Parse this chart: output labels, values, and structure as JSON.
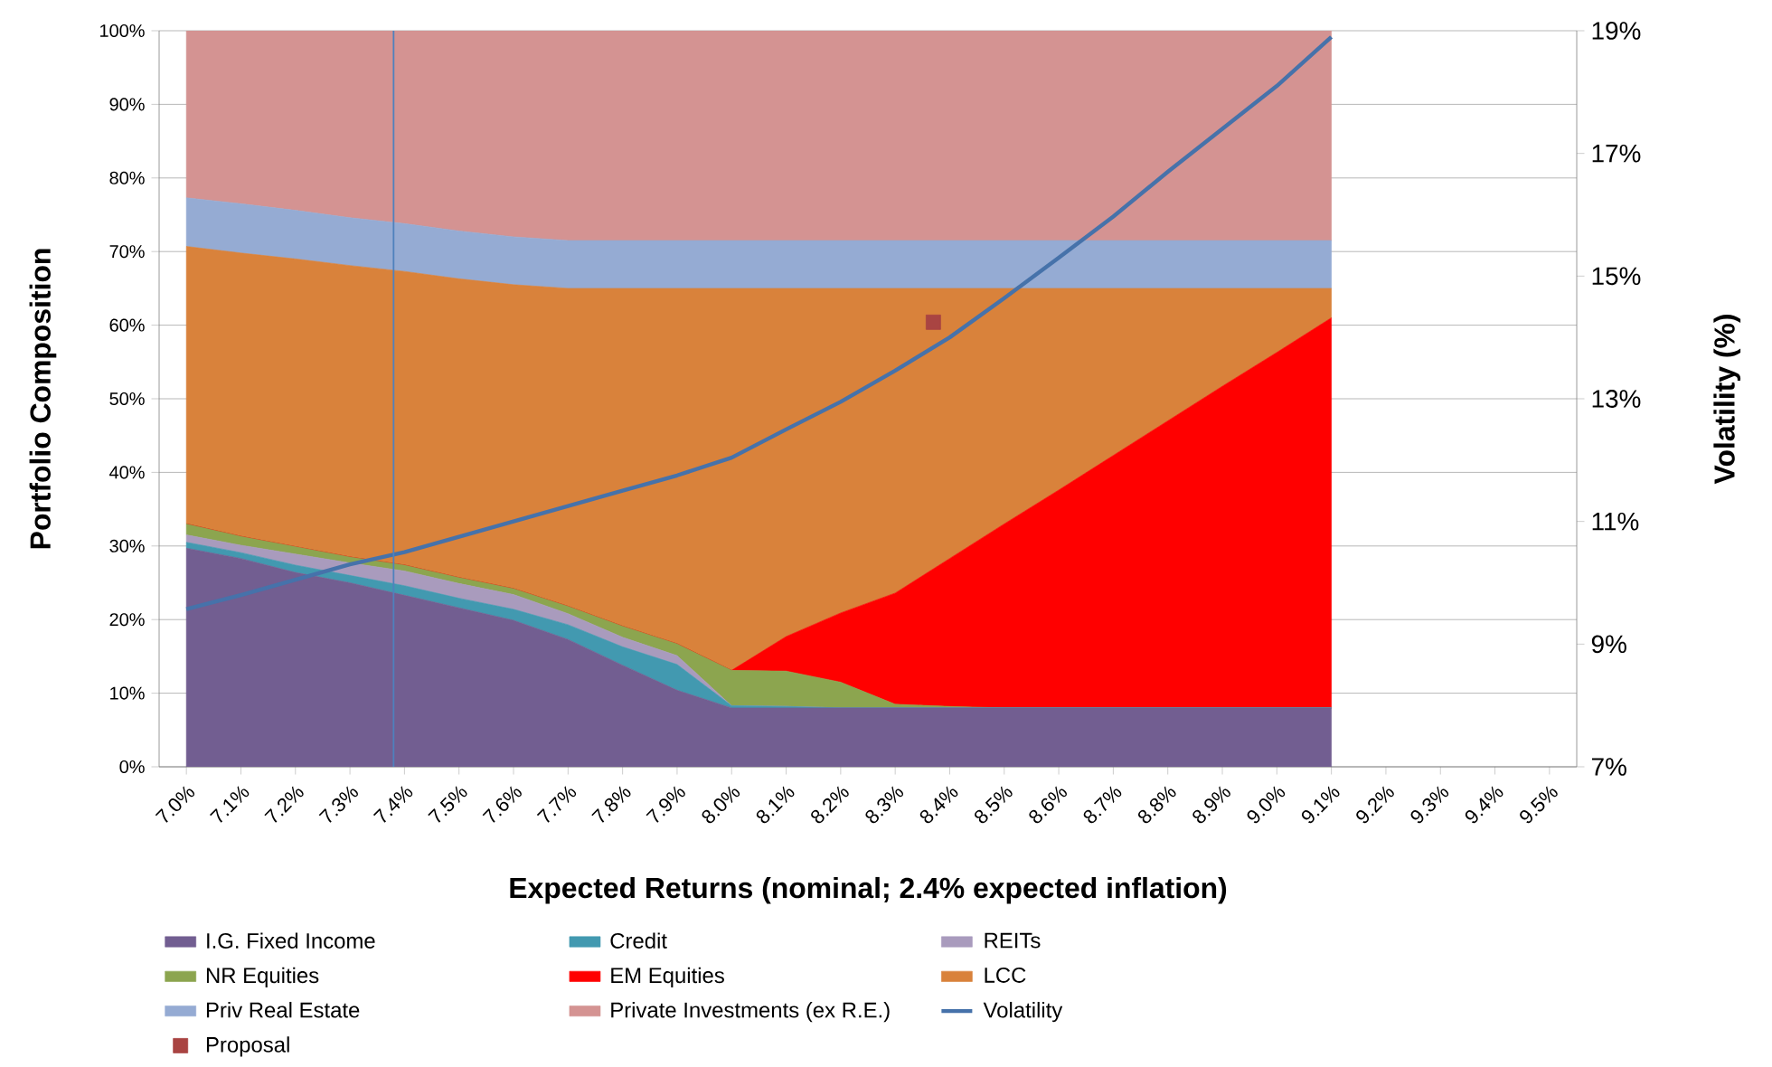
{
  "chart_data": {
    "type": "area",
    "stacked": true,
    "xlabel": "Expected Returns (nominal; 2.4% expected inflation)",
    "ylabel": "Portfolio Composition",
    "y2label": "Volatility (%)",
    "x": [
      7.0,
      7.1,
      7.2,
      7.3,
      7.4,
      7.5,
      7.6,
      7.7,
      7.8,
      7.9,
      8.0,
      8.1,
      8.2,
      8.3,
      8.4,
      8.5,
      8.6,
      8.7,
      8.8,
      8.9,
      9.0,
      9.1
    ],
    "xlim": [
      6.95,
      9.55
    ],
    "xticks": [
      {
        "value": 7.0,
        "label": "7.0%"
      },
      {
        "value": 7.1,
        "label": "7.1%"
      },
      {
        "value": 7.2,
        "label": "7.2%"
      },
      {
        "value": 7.3,
        "label": "7.3%"
      },
      {
        "value": 7.4,
        "label": "7.4%"
      },
      {
        "value": 7.5,
        "label": "7.5%"
      },
      {
        "value": 7.6,
        "label": "7.6%"
      },
      {
        "value": 7.7,
        "label": "7.7%"
      },
      {
        "value": 7.8,
        "label": "7.8%"
      },
      {
        "value": 7.9,
        "label": "7.9%"
      },
      {
        "value": 8.0,
        "label": "8.0%"
      },
      {
        "value": 8.1,
        "label": "8.1%"
      },
      {
        "value": 8.2,
        "label": "8.2%"
      },
      {
        "value": 8.3,
        "label": "8.3%"
      },
      {
        "value": 8.4,
        "label": "8.4%"
      },
      {
        "value": 8.5,
        "label": "8.5%"
      },
      {
        "value": 8.6,
        "label": "8.6%"
      },
      {
        "value": 8.7,
        "label": "8.7%"
      },
      {
        "value": 8.8,
        "label": "8.8%"
      },
      {
        "value": 8.9,
        "label": "8.9%"
      },
      {
        "value": 9.0,
        "label": "9.0%"
      },
      {
        "value": 9.1,
        "label": "9.1%"
      },
      {
        "value": 9.2,
        "label": "9.2%"
      },
      {
        "value": 9.3,
        "label": "9.3%"
      },
      {
        "value": 9.4,
        "label": "9.4%"
      },
      {
        "value": 9.5,
        "label": "9.5%"
      }
    ],
    "ylim": [
      0,
      100
    ],
    "yticks": [
      {
        "value": 0,
        "label": "0%"
      },
      {
        "value": 10,
        "label": "10%"
      },
      {
        "value": 20,
        "label": "20%"
      },
      {
        "value": 30,
        "label": "30%"
      },
      {
        "value": 40,
        "label": "40%"
      },
      {
        "value": 50,
        "label": "50%"
      },
      {
        "value": 60,
        "label": "60%"
      },
      {
        "value": 70,
        "label": "70%"
      },
      {
        "value": 80,
        "label": "80%"
      },
      {
        "value": 90,
        "label": "90%"
      },
      {
        "value": 100,
        "label": "100%"
      }
    ],
    "y2lim": [
      7,
      19
    ],
    "y2ticks": [
      {
        "value": 7,
        "label": "7%"
      },
      {
        "value": 9,
        "label": "9%"
      },
      {
        "value": 11,
        "label": "11%"
      },
      {
        "value": 13,
        "label": "13%"
      },
      {
        "value": 15,
        "label": "15%"
      },
      {
        "value": 17,
        "label": "17%"
      },
      {
        "value": 19,
        "label": "19%"
      }
    ],
    "grid": "y",
    "legend": "bottom",
    "ref_lines": [
      {
        "axis": "x",
        "value": 7.38,
        "color": "#4f81bd"
      }
    ],
    "series": [
      {
        "name": "I.G. Fixed Income",
        "color": "#725e91",
        "values": [
          29.7,
          28.3,
          26.4,
          25,
          23.3,
          21.6,
          19.9,
          17.3,
          13.8,
          10.4,
          8,
          8,
          8,
          8,
          8,
          8,
          8,
          8,
          8,
          8,
          8,
          8
        ]
      },
      {
        "name": "Credit",
        "color": "#4299b0",
        "values": [
          0.8,
          0.8,
          1,
          1,
          1.3,
          1.3,
          1.5,
          2,
          2.5,
          3.5,
          0.3,
          0.2,
          0,
          0,
          0,
          0,
          0,
          0,
          0,
          0,
          0,
          0
        ]
      },
      {
        "name": "REITs",
        "color": "#a99bbd",
        "values": [
          1,
          1,
          1.5,
          1.7,
          2,
          2,
          2,
          1.5,
          1.3,
          1.2,
          0,
          0,
          0,
          0,
          0,
          0,
          0,
          0,
          0,
          0,
          0,
          0
        ]
      },
      {
        "name": "NR Equities",
        "color": "#8ca54f",
        "values": [
          1.5,
          1.2,
          1,
          0.8,
          0.8,
          0.8,
          0.8,
          1,
          1.5,
          1.6,
          4.8,
          4.8,
          3.5,
          0.5,
          0.2,
          0,
          0,
          0,
          0,
          0,
          0,
          0
        ]
      },
      {
        "name": "EM Equities",
        "color": "#ff0000",
        "values": [
          0,
          0,
          0,
          0,
          0,
          0,
          0,
          0,
          0,
          0,
          0,
          4.7,
          9.4,
          15.1,
          20.1,
          25,
          29.6,
          34.3,
          39,
          43.7,
          48.3,
          53
        ]
      },
      {
        "name": "LCC",
        "color": "#d9823b",
        "values": [
          37.7,
          38.5,
          39.1,
          39.6,
          39.9,
          40.6,
          41.3,
          43.2,
          45.9,
          48.3,
          51.9,
          47.3,
          44.1,
          41.4,
          36.7,
          32,
          27.4,
          22.7,
          18,
          13.3,
          8.7,
          4
        ]
      },
      {
        "name": "Priv Real Estate",
        "color": "#95abd3",
        "values": [
          6.6,
          6.7,
          6.6,
          6.5,
          6.5,
          6.5,
          6.5,
          6.5,
          6.5,
          6.5,
          6.5,
          6.5,
          6.5,
          6.5,
          6.5,
          6.5,
          6.5,
          6.5,
          6.5,
          6.5,
          6.5,
          6.5
        ]
      },
      {
        "name": "Private Investments (ex R.E.)",
        "color": "#d49392",
        "values": [
          22.7,
          23.5,
          24.4,
          25.4,
          26.2,
          27.2,
          28,
          28.5,
          28.5,
          28.5,
          28.5,
          28.5,
          28.5,
          28.5,
          28.5,
          28.5,
          28.5,
          28.5,
          28.5,
          28.5,
          28.5,
          28.5
        ]
      },
      {
        "name": "Volatility",
        "type": "line",
        "axis": "y2",
        "color": "#4672aa",
        "line_style": "solid",
        "marker": "none",
        "values": [
          9.57,
          9.8,
          10.05,
          10.3,
          10.5,
          10.75,
          11.0,
          11.25,
          11.5,
          11.75,
          12.04,
          12.5,
          12.95,
          13.46,
          14.0,
          14.64,
          15.3,
          15.97,
          16.7,
          17.4,
          18.1,
          18.9
        ]
      },
      {
        "name": "Proposal",
        "type": "scatter",
        "color": "#a94442",
        "marker": "square",
        "x": [
          8.37
        ],
        "values": [
          60.4
        ]
      }
    ]
  }
}
